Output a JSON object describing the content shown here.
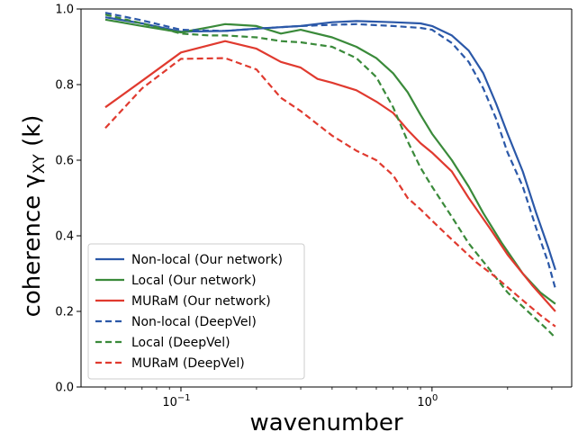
{
  "chart_data": {
    "type": "line",
    "xlabel": "wavenumber",
    "ylabel_main": "coherence",
    "ylabel_symbol": "γ",
    "ylabel_subscript": "XY",
    "ylabel_arg": "(k)",
    "xscale": "log",
    "xlim": [
      0.04,
      3.6
    ],
    "ylim": [
      0.0,
      1.0
    ],
    "yticks": [
      0.0,
      0.2,
      0.4,
      0.6,
      0.8,
      1.0
    ],
    "ytick_labels": [
      "0.0",
      "0.2",
      "0.4",
      "0.6",
      "0.8",
      "1.0"
    ],
    "xticks": [
      {
        "value": 0.1,
        "base": "10",
        "exp": "−1"
      },
      {
        "value": 1.0,
        "base": "10",
        "exp": "0"
      }
    ],
    "grid": false,
    "legend_position": "lower-left",
    "series": [
      {
        "name": "Non-local (Our network)",
        "color": "#2b58a8",
        "dash": "solid",
        "points": [
          [
            0.05,
            0.978
          ],
          [
            0.07,
            0.962
          ],
          [
            0.1,
            0.94
          ],
          [
            0.15,
            0.942
          ],
          [
            0.2,
            0.948
          ],
          [
            0.3,
            0.955
          ],
          [
            0.4,
            0.965
          ],
          [
            0.5,
            0.968
          ],
          [
            0.7,
            0.965
          ],
          [
            0.9,
            0.962
          ],
          [
            1.0,
            0.955
          ],
          [
            1.2,
            0.93
          ],
          [
            1.4,
            0.89
          ],
          [
            1.6,
            0.83
          ],
          [
            1.8,
            0.75
          ],
          [
            2.0,
            0.67
          ],
          [
            2.3,
            0.57
          ],
          [
            2.6,
            0.46
          ],
          [
            2.9,
            0.37
          ],
          [
            3.1,
            0.31
          ]
        ]
      },
      {
        "name": "Local (Our network)",
        "color": "#3a8a3a",
        "dash": "solid",
        "points": [
          [
            0.05,
            0.972
          ],
          [
            0.07,
            0.955
          ],
          [
            0.1,
            0.938
          ],
          [
            0.13,
            0.952
          ],
          [
            0.15,
            0.96
          ],
          [
            0.2,
            0.955
          ],
          [
            0.25,
            0.935
          ],
          [
            0.3,
            0.945
          ],
          [
            0.4,
            0.925
          ],
          [
            0.5,
            0.9
          ],
          [
            0.6,
            0.87
          ],
          [
            0.7,
            0.83
          ],
          [
            0.8,
            0.78
          ],
          [
            0.9,
            0.72
          ],
          [
            1.0,
            0.67
          ],
          [
            1.2,
            0.6
          ],
          [
            1.4,
            0.53
          ],
          [
            1.6,
            0.46
          ],
          [
            1.9,
            0.38
          ],
          [
            2.3,
            0.3
          ],
          [
            2.7,
            0.25
          ],
          [
            3.1,
            0.22
          ]
        ]
      },
      {
        "name": "MURaM (Our network)",
        "color": "#e03a2f",
        "dash": "solid",
        "points": [
          [
            0.05,
            0.74
          ],
          [
            0.07,
            0.81
          ],
          [
            0.1,
            0.885
          ],
          [
            0.15,
            0.915
          ],
          [
            0.2,
            0.895
          ],
          [
            0.25,
            0.86
          ],
          [
            0.3,
            0.845
          ],
          [
            0.35,
            0.815
          ],
          [
            0.4,
            0.805
          ],
          [
            0.5,
            0.785
          ],
          [
            0.6,
            0.755
          ],
          [
            0.7,
            0.725
          ],
          [
            0.8,
            0.68
          ],
          [
            0.9,
            0.645
          ],
          [
            1.0,
            0.62
          ],
          [
            1.2,
            0.57
          ],
          [
            1.4,
            0.5
          ],
          [
            1.7,
            0.42
          ],
          [
            2.0,
            0.35
          ],
          [
            2.5,
            0.27
          ],
          [
            3.1,
            0.2
          ]
        ]
      },
      {
        "name": "Non-local (DeepVel)",
        "color": "#2b58a8",
        "dash": "dashed",
        "points": [
          [
            0.05,
            0.99
          ],
          [
            0.07,
            0.97
          ],
          [
            0.1,
            0.945
          ],
          [
            0.15,
            0.942
          ],
          [
            0.2,
            0.948
          ],
          [
            0.3,
            0.955
          ],
          [
            0.4,
            0.958
          ],
          [
            0.5,
            0.96
          ],
          [
            0.7,
            0.955
          ],
          [
            0.9,
            0.95
          ],
          [
            1.0,
            0.945
          ],
          [
            1.2,
            0.91
          ],
          [
            1.4,
            0.86
          ],
          [
            1.6,
            0.79
          ],
          [
            1.8,
            0.71
          ],
          [
            2.0,
            0.62
          ],
          [
            2.3,
            0.53
          ],
          [
            2.6,
            0.42
          ],
          [
            2.9,
            0.33
          ],
          [
            3.1,
            0.26
          ]
        ]
      },
      {
        "name": "Local (DeepVel)",
        "color": "#3a8a3a",
        "dash": "dashed",
        "points": [
          [
            0.05,
            0.985
          ],
          [
            0.07,
            0.962
          ],
          [
            0.1,
            0.935
          ],
          [
            0.13,
            0.93
          ],
          [
            0.15,
            0.93
          ],
          [
            0.2,
            0.925
          ],
          [
            0.25,
            0.915
          ],
          [
            0.3,
            0.912
          ],
          [
            0.4,
            0.9
          ],
          [
            0.5,
            0.87
          ],
          [
            0.6,
            0.82
          ],
          [
            0.7,
            0.74
          ],
          [
            0.8,
            0.65
          ],
          [
            0.9,
            0.58
          ],
          [
            1.0,
            0.53
          ],
          [
            1.2,
            0.45
          ],
          [
            1.4,
            0.38
          ],
          [
            1.7,
            0.31
          ],
          [
            2.0,
            0.25
          ],
          [
            2.5,
            0.19
          ],
          [
            2.9,
            0.15
          ],
          [
            3.1,
            0.13
          ]
        ]
      },
      {
        "name": "MURaM (DeepVel)",
        "color": "#e03a2f",
        "dash": "dashed",
        "points": [
          [
            0.05,
            0.685
          ],
          [
            0.07,
            0.79
          ],
          [
            0.1,
            0.868
          ],
          [
            0.15,
            0.87
          ],
          [
            0.2,
            0.84
          ],
          [
            0.25,
            0.765
          ],
          [
            0.3,
            0.73
          ],
          [
            0.35,
            0.695
          ],
          [
            0.4,
            0.665
          ],
          [
            0.5,
            0.625
          ],
          [
            0.6,
            0.6
          ],
          [
            0.7,
            0.56
          ],
          [
            0.8,
            0.5
          ],
          [
            0.9,
            0.47
          ],
          [
            1.0,
            0.44
          ],
          [
            1.2,
            0.39
          ],
          [
            1.5,
            0.33
          ],
          [
            1.8,
            0.29
          ],
          [
            2.2,
            0.24
          ],
          [
            2.7,
            0.19
          ],
          [
            3.1,
            0.16
          ]
        ]
      }
    ]
  }
}
